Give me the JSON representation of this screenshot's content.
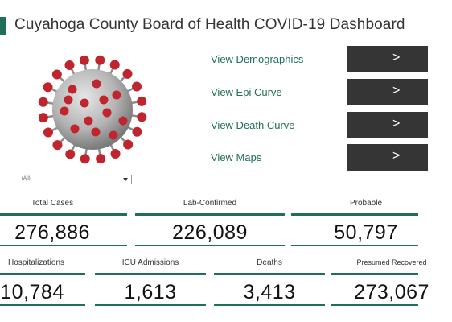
{
  "header": {
    "title": "Cuyahoga County Board of Health COVID-19 Dashboard"
  },
  "navigation": [
    {
      "label": "View Demographics",
      "button": ">"
    },
    {
      "label": "View Epi Curve",
      "button": ">"
    },
    {
      "label": "View Death Curve",
      "button": ">"
    },
    {
      "label": "View Maps",
      "button": ">"
    }
  ],
  "filter": {
    "value": "(All)"
  },
  "kpis_row1": [
    {
      "label": "Total Cases",
      "value": "276,886"
    },
    {
      "label": "Lab-Confirmed",
      "value": "226,089"
    },
    {
      "label": "Probable",
      "value": "50,797"
    }
  ],
  "kpis_row2": [
    {
      "label": "Hospitalizations",
      "value": "10,784"
    },
    {
      "label": "ICU Admissions",
      "value": "1,613"
    },
    {
      "label": "Deaths",
      "value": "3,413"
    },
    {
      "label": "Presumed Recovered",
      "value": "273,067"
    }
  ],
  "colors": {
    "accent": "#1f6f5c",
    "button": "#353535",
    "virus_body": "#b8b8b8",
    "virus_spike": "#c0242c"
  },
  "icons": [
    "virus-illustration",
    "chevron-right-icon",
    "dropdown-arrow-icon"
  ]
}
